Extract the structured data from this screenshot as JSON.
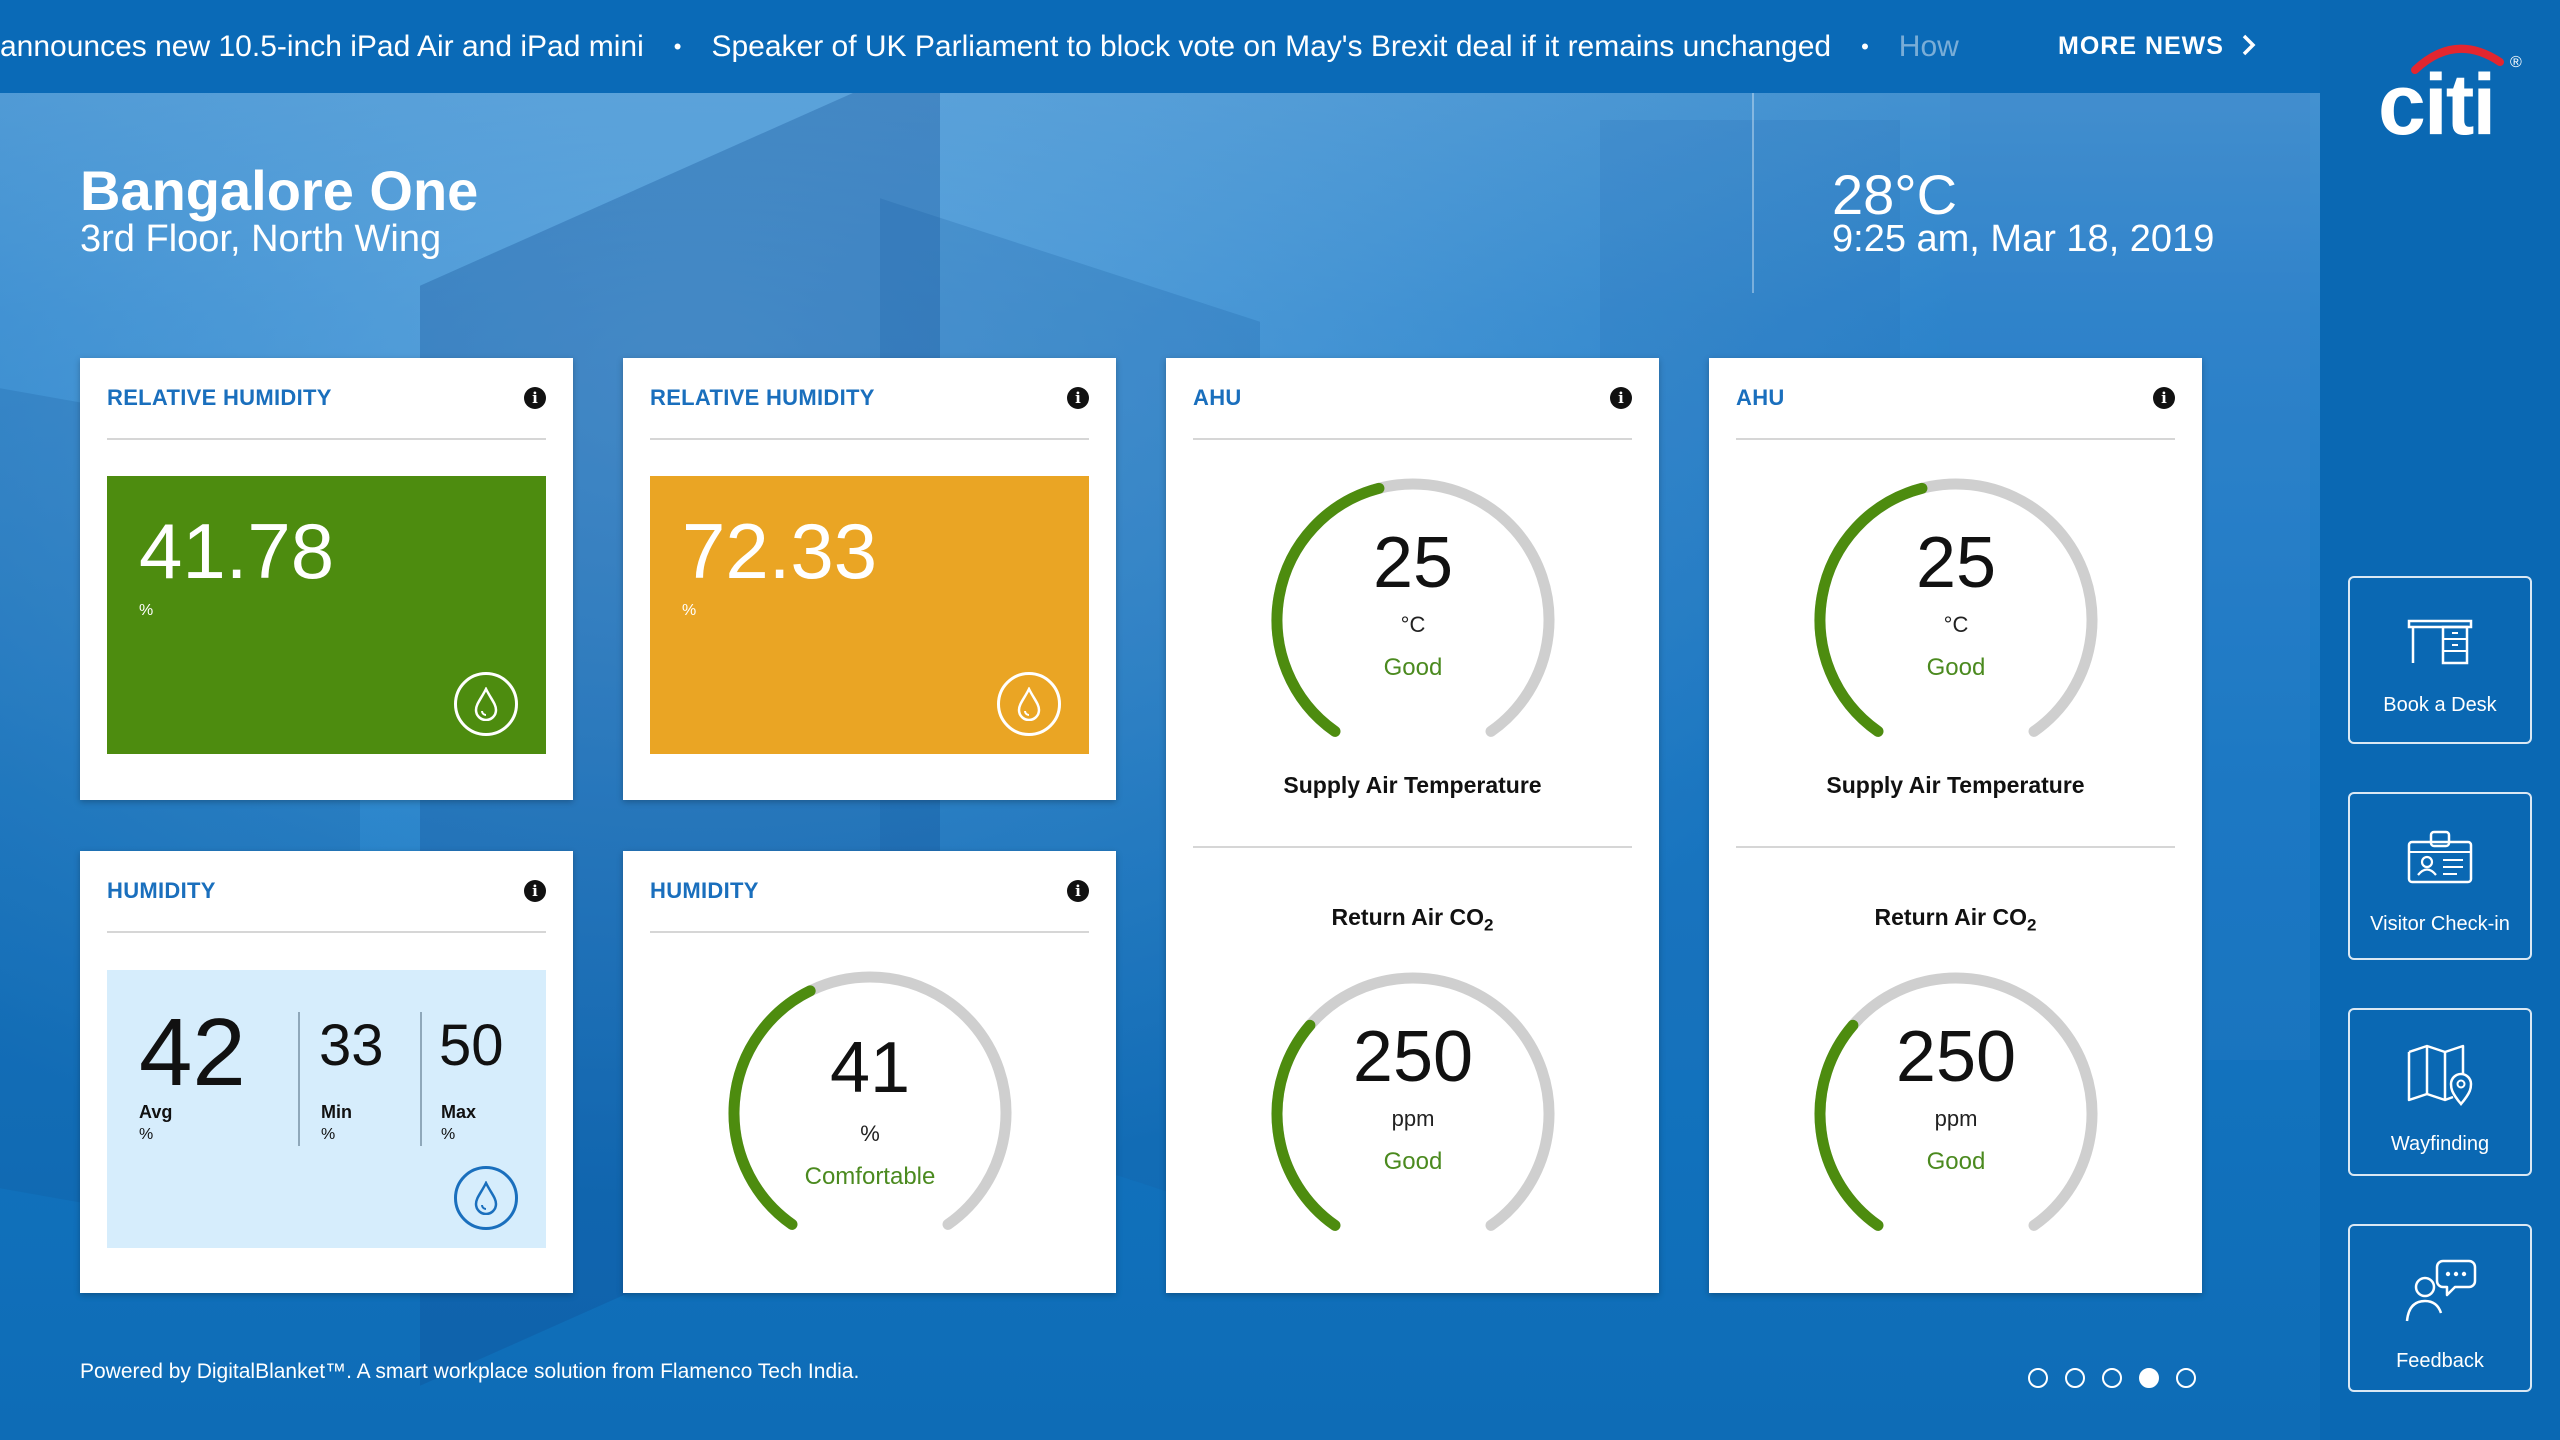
{
  "ticker": {
    "items": [
      "announces new 10.5-inch iPad Air and iPad mini",
      "Speaker of UK Parliament to block vote on May's Brexit deal if it remains unchanged",
      "How"
    ],
    "bullet": "•",
    "more_news": "MORE NEWS"
  },
  "brand": {
    "logo_text": "citi",
    "registered": "®"
  },
  "location": {
    "title": "Bangalore One",
    "subtitle": "3rd Floor, North Wing"
  },
  "weather": {
    "temperature": "28°C",
    "datetime": "9:25 am, Mar 18, 2019"
  },
  "cards": {
    "rh1": {
      "title": "RELATIVE HUMIDITY",
      "value": "41.78",
      "unit": "%",
      "color": "#4d8c0f"
    },
    "rh2": {
      "title": "RELATIVE HUMIDITY",
      "value": "72.33",
      "unit": "%",
      "color": "#eaa524"
    },
    "hum1": {
      "title": "HUMIDITY",
      "avg": "42",
      "avg_label": "Avg",
      "avg_unit": "%",
      "min": "33",
      "min_label": "Min",
      "min_unit": "%",
      "max": "50",
      "max_label": "Max",
      "max_unit": "%"
    },
    "hum2": {
      "title": "HUMIDITY",
      "value": "41",
      "unit": "%",
      "status": "Comfortable",
      "fraction": 0.41
    },
    "ahu1": {
      "title": "AHU",
      "supply": {
        "value": "25",
        "unit": "°C",
        "status": "Good",
        "label": "Supply Air Temperature",
        "fraction": 0.45
      },
      "co2": {
        "value": "250",
        "unit": "ppm",
        "status": "Good",
        "label_prefix": "Return Air CO",
        "label_sub": "2",
        "fraction": 0.33
      }
    },
    "ahu2": {
      "title": "AHU",
      "supply": {
        "value": "25",
        "unit": "°C",
        "status": "Good",
        "label": "Supply Air Temperature",
        "fraction": 0.45
      },
      "co2": {
        "value": "250",
        "unit": "ppm",
        "status": "Good",
        "label_prefix": "Return Air CO",
        "label_sub": "2",
        "fraction": 0.33
      }
    }
  },
  "sidebar": {
    "buttons": [
      {
        "label": "Book a Desk",
        "icon": "desk-icon"
      },
      {
        "label": "Visitor Check-in",
        "icon": "badge-icon"
      },
      {
        "label": "Wayfinding",
        "icon": "map-pin-icon"
      },
      {
        "label": "Feedback",
        "icon": "feedback-icon"
      }
    ]
  },
  "footer": {
    "text": "Powered by DigitalBlanket™. A smart workplace solution from Flamenco Tech India."
  },
  "pagination": {
    "total": 5,
    "active": 4
  },
  "colors": {
    "accent_blue": "#1a6fbd",
    "good_green": "#4b8a1f",
    "gauge_track": "#cfcfcf",
    "gauge_fill": "#4d8c0f"
  }
}
